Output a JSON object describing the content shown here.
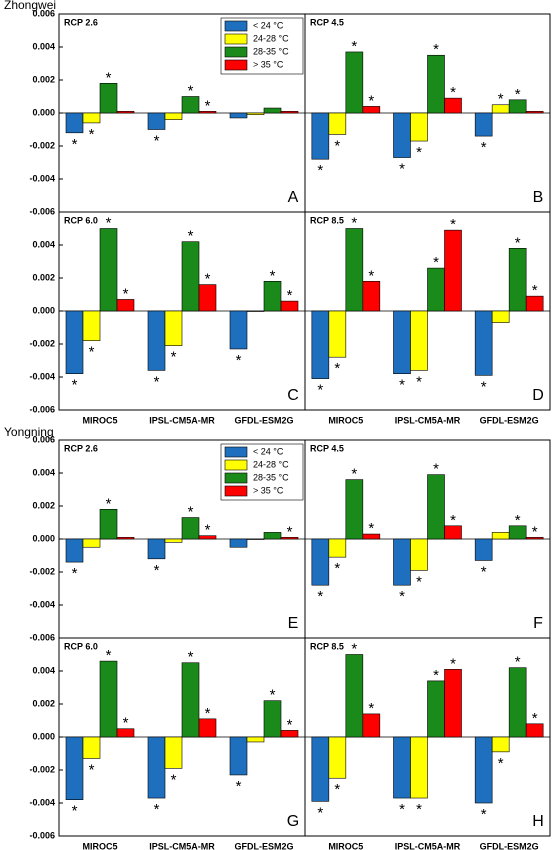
{
  "figure_titles": [
    "Zhongwei",
    "Yongning"
  ],
  "chart_data": [
    {
      "type": "bar",
      "title": "RCP 2.6",
      "label": "A",
      "categories": [
        null,
        null,
        null
      ],
      "ylim": [
        -0.006,
        0.006
      ],
      "yticks": [
        0.006,
        0.004,
        0.002,
        {
          "value": 0,
          "label": "0.000"
        },
        -0.002,
        -0.004,
        -0.006
      ],
      "series": [
        {
          "name": "< 24 °C",
          "color": "#1f6fbf",
          "values": [
            -0.0012,
            -0.001,
            -0.0003
          ],
          "annotations": [
            "*",
            "*",
            null
          ]
        },
        {
          "name": "24-28 °C",
          "color": "#ffff00",
          "values": [
            -0.0006,
            -0.0004,
            -0.0001
          ],
          "annotations": [
            "*",
            null,
            null
          ]
        },
        {
          "name": "28-35 °C",
          "color": "#1a8a1a",
          "values": [
            0.0018,
            0.001,
            0.0003
          ],
          "annotations": [
            "*",
            "*",
            null
          ]
        },
        {
          "name": "> 35 °C",
          "color": "#ff0000",
          "values": [
            0.0001,
            0.0001,
            0.0001
          ],
          "annotations": [
            null,
            "*",
            null
          ]
        }
      ]
    },
    {
      "type": "bar",
      "title": "RCP 4.5",
      "label": "B",
      "categories": [
        null,
        null,
        null
      ],
      "ylim": [
        -0.006,
        0.006
      ],
      "series": [
        {
          "color": "#1f6fbf",
          "values": [
            -0.0028,
            -0.0027,
            -0.0014
          ],
          "annotations": [
            "*",
            "*",
            "*"
          ]
        },
        {
          "color": "#ffff00",
          "values": [
            -0.0013,
            -0.0017,
            0.0005
          ],
          "annotations": [
            "*",
            "*",
            "*"
          ]
        },
        {
          "color": "#1a8a1a",
          "values": [
            0.0037,
            0.0035,
            0.0008
          ],
          "annotations": [
            "*",
            "*",
            "*"
          ]
        },
        {
          "color": "#ff0000",
          "values": [
            0.0004,
            0.0009,
            0.0001
          ],
          "annotations": [
            "*",
            "*",
            null
          ]
        }
      ]
    },
    {
      "type": "bar",
      "title": "RCP 6.0",
      "label": "C",
      "categories": [
        "MIROC5",
        "IPSL-CM5A-MR",
        "GFDL-ESM2G"
      ],
      "ylim": [
        -0.006,
        0.006
      ],
      "yticks": [
        0.004,
        0.002,
        {
          "value": 0,
          "label": "0.000"
        },
        -0.002,
        -0.004,
        -0.006
      ],
      "series": [
        {
          "color": "#1f6fbf",
          "values": [
            -0.0038,
            -0.0036,
            -0.0023
          ],
          "annotations": [
            "*",
            "*",
            "*"
          ]
        },
        {
          "color": "#ffff00",
          "values": [
            -0.0018,
            -0.0021,
            0
          ],
          "annotations": [
            "*",
            "*",
            null
          ]
        },
        {
          "color": "#1a8a1a",
          "values": [
            0.005,
            0.0042,
            0.0018
          ],
          "annotations": [
            "*",
            "*",
            "*"
          ]
        },
        {
          "color": "#ff0000",
          "values": [
            0.0007,
            0.0016,
            0.0006
          ],
          "annotations": [
            "*",
            "*",
            "*"
          ]
        }
      ]
    },
    {
      "type": "bar",
      "title": "RCP 8.5",
      "label": "D",
      "categories": [
        "MIROC5",
        "IPSL-CM5A-MR",
        "GFDL-ESM2G"
      ],
      "ylim": [
        -0.006,
        0.006
      ],
      "series": [
        {
          "color": "#1f6fbf",
          "values": [
            -0.0041,
            -0.0038,
            -0.0039
          ],
          "annotations": [
            "*",
            "*",
            "*"
          ]
        },
        {
          "color": "#ffff00",
          "values": [
            -0.0028,
            -0.0036,
            -0.0007
          ],
          "annotations": [
            "*",
            "*",
            null
          ]
        },
        {
          "color": "#1a8a1a",
          "values": [
            0.005,
            0.0026,
            0.0038
          ],
          "annotations": [
            "*",
            "*",
            "*"
          ]
        },
        {
          "color": "#ff0000",
          "values": [
            0.0018,
            0.0049,
            0.0009
          ],
          "annotations": [
            "*",
            "*",
            "*"
          ]
        }
      ]
    },
    {
      "type": "bar",
      "title": "RCP 2.6",
      "label": "E",
      "categories": [
        null,
        null,
        null
      ],
      "ylim": [
        -0.006,
        0.006
      ],
      "yticks": [
        0.006,
        0.004,
        0.002,
        {
          "value": 0,
          "label": "0.000"
        },
        -0.002,
        -0.004,
        -0.006
      ],
      "series": [
        {
          "name": "< 24 °C",
          "color": "#1f6fbf",
          "values": [
            -0.0014,
            -0.0012,
            -0.0005
          ],
          "annotations": [
            "*",
            "*",
            null
          ]
        },
        {
          "name": "24-28 °C",
          "color": "#ffff00",
          "values": [
            -0.0005,
            -0.0002,
            0
          ],
          "annotations": [
            null,
            null,
            null
          ]
        },
        {
          "name": "28-35 °C",
          "color": "#1a8a1a",
          "values": [
            0.0018,
            0.0013,
            0.0004
          ],
          "annotations": [
            "*",
            "*",
            null
          ]
        },
        {
          "name": "> 35 °C",
          "color": "#ff0000",
          "values": [
            0.0001,
            0.0002,
            0.0001
          ],
          "annotations": [
            null,
            "*",
            "*"
          ]
        }
      ]
    },
    {
      "type": "bar",
      "title": "RCP 4.5",
      "label": "F",
      "categories": [
        null,
        null,
        null
      ],
      "ylim": [
        -0.006,
        0.006
      ],
      "series": [
        {
          "color": "#1f6fbf",
          "values": [
            -0.0028,
            -0.0028,
            -0.0013
          ],
          "annotations": [
            "*",
            "*",
            "*"
          ]
        },
        {
          "color": "#ffff00",
          "values": [
            -0.0011,
            -0.0019,
            0.0004
          ],
          "annotations": [
            "*",
            "*",
            null
          ]
        },
        {
          "color": "#1a8a1a",
          "values": [
            0.0036,
            0.0039,
            0.0008
          ],
          "annotations": [
            "*",
            "*",
            "*"
          ]
        },
        {
          "color": "#ff0000",
          "values": [
            0.0003,
            0.0008,
            0.0001
          ],
          "annotations": [
            "*",
            "*",
            "*"
          ]
        }
      ]
    },
    {
      "type": "bar",
      "title": "RCP 6.0",
      "label": "G",
      "categories": [
        "MIROC5",
        "IPSL-CM5A-MR",
        "GFDL-ESM2G"
      ],
      "ylim": [
        -0.006,
        0.006
      ],
      "yticks": [
        0.004,
        0.002,
        {
          "value": 0,
          "label": "0.000"
        },
        -0.002,
        -0.004,
        -0.006
      ],
      "series": [
        {
          "color": "#1f6fbf",
          "values": [
            -0.0038,
            -0.0037,
            -0.0023
          ],
          "annotations": [
            "*",
            "*",
            "*"
          ]
        },
        {
          "color": "#ffff00",
          "values": [
            -0.0013,
            -0.0019,
            -0.0003
          ],
          "annotations": [
            "*",
            "*",
            null
          ]
        },
        {
          "color": "#1a8a1a",
          "values": [
            0.0046,
            0.0045,
            0.0022
          ],
          "annotations": [
            "*",
            "*",
            "*"
          ]
        },
        {
          "color": "#ff0000",
          "values": [
            0.0005,
            0.0011,
            0.0004
          ],
          "annotations": [
            "*",
            "*",
            "*"
          ]
        }
      ]
    },
    {
      "type": "bar",
      "title": "RCP 8.5",
      "label": "H",
      "categories": [
        "MIROC5",
        "IPSL-CM5A-MR",
        "GFDL-ESM2G"
      ],
      "ylim": [
        -0.006,
        0.006
      ],
      "series": [
        {
          "color": "#1f6fbf",
          "values": [
            -0.0039,
            -0.0037,
            -0.004
          ],
          "annotations": [
            "*",
            "*",
            "*"
          ]
        },
        {
          "color": "#ffff00",
          "values": [
            -0.0025,
            -0.0037,
            -0.0009
          ],
          "annotations": [
            "*",
            "*",
            "*"
          ]
        },
        {
          "color": "#1a8a1a",
          "values": [
            0.005,
            0.0034,
            0.0042
          ],
          "annotations": [
            "*",
            "*",
            "*"
          ]
        },
        {
          "color": "#ff0000",
          "values": [
            0.0014,
            0.0041,
            0.0008
          ],
          "annotations": [
            "*",
            "*",
            "*"
          ]
        }
      ]
    }
  ]
}
